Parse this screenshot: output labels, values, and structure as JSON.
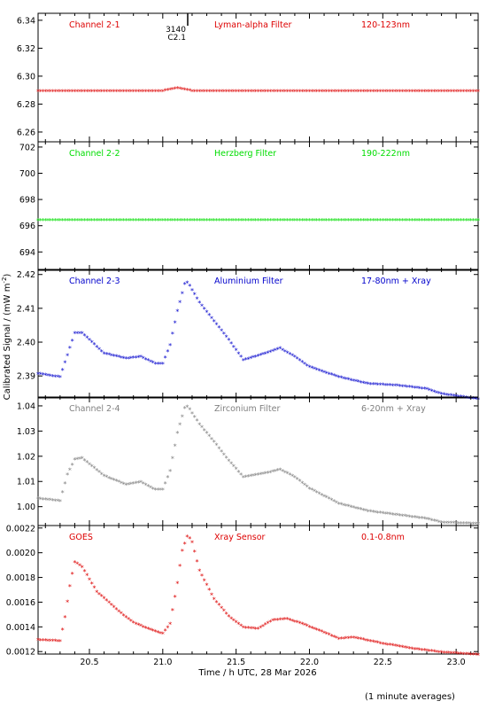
{
  "figure": {
    "ylabel": "Calibrated Signal / (mW m",
    "ylabel_sup": "-2",
    "ylabel_close": ")",
    "xlabel": "Time / h UTC, 28 Mar 2026",
    "footnote": "(1 minute averages)",
    "flare_marker": {
      "x": 21.17,
      "number": "3140",
      "class": "C2.1"
    }
  },
  "chart_data": [
    {
      "type": "scatter",
      "color": "#dd0000",
      "labels": {
        "channel": "Channel 2-1",
        "filter": "Lyman-alpha Filter",
        "band": "120-123nm"
      },
      "xlim": [
        20.15,
        23.15
      ],
      "ylim": [
        6.253,
        6.345
      ],
      "yticks": [
        6.26,
        6.28,
        6.3,
        6.32,
        6.34
      ],
      "ytick_labels": [
        "6.26",
        "6.28",
        "6.30",
        "6.32",
        "6.34"
      ],
      "x": [
        20.15,
        20.5,
        21.0,
        21.1,
        21.2,
        21.5,
        22.0,
        22.5,
        23.15
      ],
      "y": [
        6.289,
        6.289,
        6.289,
        6.291,
        6.289,
        6.289,
        6.289,
        6.289,
        6.289
      ]
    },
    {
      "type": "scatter",
      "color": "#00dd00",
      "labels": {
        "channel": "Channel 2-2",
        "filter": "Herzberg Filter",
        "band": "190-222nm"
      },
      "xlim": [
        20.15,
        23.15
      ],
      "ylim": [
        692.6,
        702.4
      ],
      "yticks": [
        694,
        696,
        698,
        700,
        702
      ],
      "ytick_labels": [
        "694",
        "696",
        "698",
        "700",
        "702"
      ],
      "x": [
        20.15,
        20.5,
        21.0,
        21.5,
        22.0,
        22.5,
        23.15
      ],
      "y": [
        696.4,
        696.4,
        696.4,
        696.4,
        696.4,
        696.4,
        696.4
      ]
    },
    {
      "type": "scatter",
      "color": "#0000cc",
      "labels": {
        "channel": "Channel 2-3",
        "filter": "Aluminium Filter",
        "band": "17-80nm + Xray"
      },
      "xlim": [
        20.15,
        23.15
      ],
      "ylim": [
        2.3835,
        2.4215
      ],
      "yticks": [
        2.39,
        2.4,
        2.41,
        2.42
      ],
      "ytick_labels": [
        "2.39",
        "2.40",
        "2.41",
        "2.42"
      ],
      "x": [
        20.15,
        20.3,
        20.35,
        20.4,
        20.45,
        20.6,
        20.75,
        20.85,
        20.95,
        21.0,
        21.05,
        21.1,
        21.15,
        21.17,
        21.25,
        21.35,
        21.45,
        21.55,
        21.7,
        21.8,
        21.9,
        22.0,
        22.2,
        22.4,
        22.6,
        22.8,
        22.9,
        23.15
      ],
      "y": [
        2.3905,
        2.3895,
        2.396,
        2.4025,
        2.4025,
        2.3965,
        2.395,
        2.3955,
        2.3935,
        2.3935,
        2.399,
        2.409,
        2.417,
        2.4175,
        2.4115,
        2.406,
        2.4005,
        2.3945,
        2.3965,
        2.398,
        2.3955,
        2.3925,
        2.3895,
        2.3875,
        2.387,
        2.386,
        2.3845,
        2.383
      ]
    },
    {
      "type": "scatter",
      "color": "#808080",
      "labels": {
        "channel": "Channel 2-4",
        "filter": "Zirconium Filter",
        "band": "6-20nm + Xray"
      },
      "xlim": [
        20.15,
        23.15
      ],
      "ylim": [
        0.9925,
        1.0435
      ],
      "yticks": [
        1.0,
        1.01,
        1.02,
        1.03,
        1.04
      ],
      "ytick_labels": [
        "1.00",
        "1.01",
        "1.02",
        "1.03",
        "1.04"
      ],
      "x": [
        20.15,
        20.3,
        20.35,
        20.4,
        20.45,
        20.6,
        20.75,
        20.85,
        20.95,
        21.0,
        21.05,
        21.1,
        21.15,
        21.17,
        21.25,
        21.35,
        21.45,
        21.55,
        21.7,
        21.8,
        21.9,
        22.0,
        22.2,
        22.4,
        22.6,
        22.8,
        22.9,
        23.15
      ],
      "y": [
        1.003,
        1.002,
        1.0125,
        1.0185,
        1.019,
        1.012,
        1.0085,
        1.0095,
        1.0065,
        1.0065,
        1.014,
        1.029,
        1.039,
        1.0395,
        1.0325,
        1.0255,
        1.018,
        1.0115,
        1.013,
        1.0145,
        1.0115,
        1.007,
        1.001,
        0.998,
        0.9965,
        0.995,
        0.9935,
        0.993
      ]
    },
    {
      "type": "scatter",
      "color": "#dd0000",
      "labels": {
        "channel": "GOES",
        "filter": "Xray Sensor",
        "band": "0.1-0.8nm"
      },
      "xlim": [
        20.15,
        23.15
      ],
      "ylim": [
        0.00118,
        0.00222
      ],
      "yticks": [
        0.0012,
        0.0014,
        0.0016,
        0.0018,
        0.002,
        0.0022
      ],
      "ytick_labels": [
        "0.0012",
        "0.0014",
        "0.0016",
        "0.0018",
        "0.0020",
        "0.0022"
      ],
      "xticks": [
        20.5,
        21.0,
        21.5,
        22.0,
        22.5,
        23.0
      ],
      "xtick_labels": [
        "20.5",
        "21.0",
        "21.5",
        "22.0",
        "22.5",
        "23.0"
      ],
      "x": [
        20.15,
        20.3,
        20.33,
        20.37,
        20.4,
        20.45,
        20.55,
        20.7,
        20.8,
        20.9,
        21.0,
        21.05,
        21.1,
        21.13,
        21.17,
        21.2,
        21.25,
        21.35,
        21.45,
        21.55,
        21.65,
        21.75,
        21.85,
        21.95,
        22.1,
        22.2,
        22.3,
        22.5,
        22.7,
        22.9,
        23.15
      ],
      "y": [
        0.00129,
        0.00128,
        0.00145,
        0.00175,
        0.00192,
        0.00188,
        0.00168,
        0.00152,
        0.00143,
        0.00138,
        0.00134,
        0.00142,
        0.00175,
        0.002,
        0.00214,
        0.00208,
        0.00185,
        0.00162,
        0.00148,
        0.00139,
        0.00138,
        0.00145,
        0.00146,
        0.00142,
        0.00135,
        0.0013,
        0.00131,
        0.00126,
        0.00122,
        0.00119,
        0.00117
      ]
    }
  ]
}
